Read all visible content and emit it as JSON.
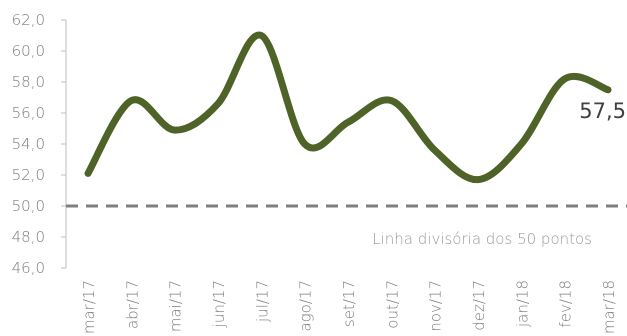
{
  "chart_data": {
    "type": "line",
    "x": [
      "mar/17",
      "abr/17",
      "mai/17",
      "jun/17",
      "jul/17",
      "ago/17",
      "set/17",
      "out/17",
      "nov/17",
      "dez/17",
      "jan/18",
      "fev/18",
      "mar/18"
    ],
    "series": [
      {
        "values": [
          52.1,
          56.8,
          54.9,
          56.6,
          61.0,
          54.0,
          55.4,
          56.8,
          53.6,
          51.7,
          54.0,
          58.2,
          57.5
        ]
      }
    ],
    "ylim": [
      46.0,
      62.0
    ],
    "yticks": [
      "46,0",
      "48,0",
      "50,0",
      "52,0",
      "54,0",
      "56,0",
      "58,0",
      "60,0",
      "62,0"
    ],
    "reference_line": {
      "value": 50.0,
      "label": "Linha divisória dos 50 pontos"
    },
    "end_label": "57,5",
    "line_color": "#4f6228",
    "reference_color": "#7f7f7f",
    "grid": false
  }
}
